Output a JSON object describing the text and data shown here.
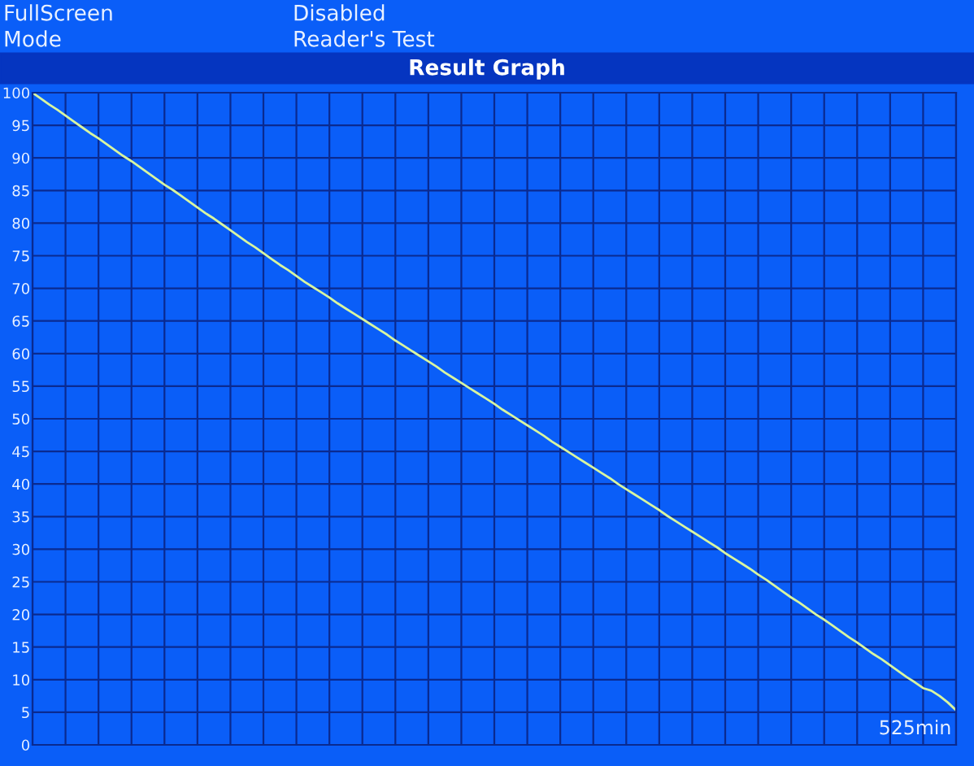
{
  "chart_data": {
    "type": "line",
    "title": "Result Graph",
    "annotations": [
      "FullScreen",
      "Disabled",
      "Mode",
      "Reader's Test",
      "525min"
    ],
    "categories": [
      null,
      null,
      null,
      null,
      null,
      null,
      null,
      null,
      null,
      null,
      null,
      null,
      null,
      null,
      null,
      null,
      null,
      null,
      null,
      null,
      null,
      null,
      null,
      null,
      null,
      null,
      null,
      null,
      null,
      null,
      null,
      null,
      null,
      null,
      null,
      null,
      null,
      null,
      null,
      null,
      null,
      null,
      null,
      null,
      null,
      null,
      null,
      null,
      null,
      null,
      null,
      null,
      null,
      null,
      null,
      null,
      null,
      null,
      null,
      null,
      null,
      null,
      null,
      null,
      null,
      null,
      null,
      null,
      null,
      null,
      null,
      null,
      null,
      null,
      null,
      null,
      null,
      null,
      null,
      null,
      null,
      null,
      null,
      null,
      null,
      null,
      null,
      null,
      null,
      null,
      null,
      null,
      null,
      null,
      null,
      null,
      null,
      null,
      null,
      null,
      null,
      null,
      null,
      null,
      null,
      null,
      null,
      null,
      null,
      null,
      null,
      null,
      null
    ],
    "series": [
      {
        "color": "#d8f5a0",
        "values": [
          100,
          99.1,
          98.2,
          97.4,
          96.5,
          95.6,
          94.7,
          93.8,
          93.0,
          92.1,
          91.2,
          90.3,
          89.5,
          88.6,
          87.7,
          86.8,
          85.9,
          85.1,
          84.2,
          83.3,
          82.4,
          81.5,
          80.7,
          79.8,
          78.9,
          78.0,
          77.1,
          76.3,
          75.4,
          74.5,
          73.6,
          72.8,
          71.9,
          71.0,
          70.2,
          69.4,
          68.6,
          67.7,
          66.9,
          66.1,
          65.3,
          64.5,
          63.7,
          62.9,
          62.0,
          61.2,
          60.4,
          59.6,
          58.8,
          58.0,
          57.1,
          56.3,
          55.5,
          54.7,
          53.9,
          53.1,
          52.3,
          51.4,
          50.6,
          49.8,
          49.0,
          48.2,
          47.4,
          46.5,
          45.7,
          44.9,
          44.1,
          43.3,
          42.5,
          41.7,
          40.9,
          40.0,
          39.2,
          38.4,
          37.6,
          36.8,
          36.0,
          35.1,
          34.3,
          33.5,
          32.7,
          31.9,
          31.1,
          30.3,
          29.4,
          28.6,
          27.8,
          27.0,
          26.1,
          25.3,
          24.4,
          23.5,
          22.6,
          21.8,
          20.9,
          20.0,
          19.2,
          18.3,
          17.4,
          16.5,
          15.7,
          14.8,
          13.9,
          13.1,
          12.2,
          11.3,
          10.4,
          9.6,
          8.7,
          8.3,
          7.5,
          6.5,
          5.3
        ]
      }
    ],
    "ylim": [
      0,
      100
    ],
    "yticks": [
      0,
      5,
      10,
      15,
      20,
      25,
      30,
      35,
      40,
      45,
      50,
      55,
      60,
      65,
      70,
      75,
      80,
      85,
      90,
      95,
      100
    ],
    "tick_labels": "y",
    "grid": true,
    "line_style": "solid",
    "marker": "none"
  }
}
